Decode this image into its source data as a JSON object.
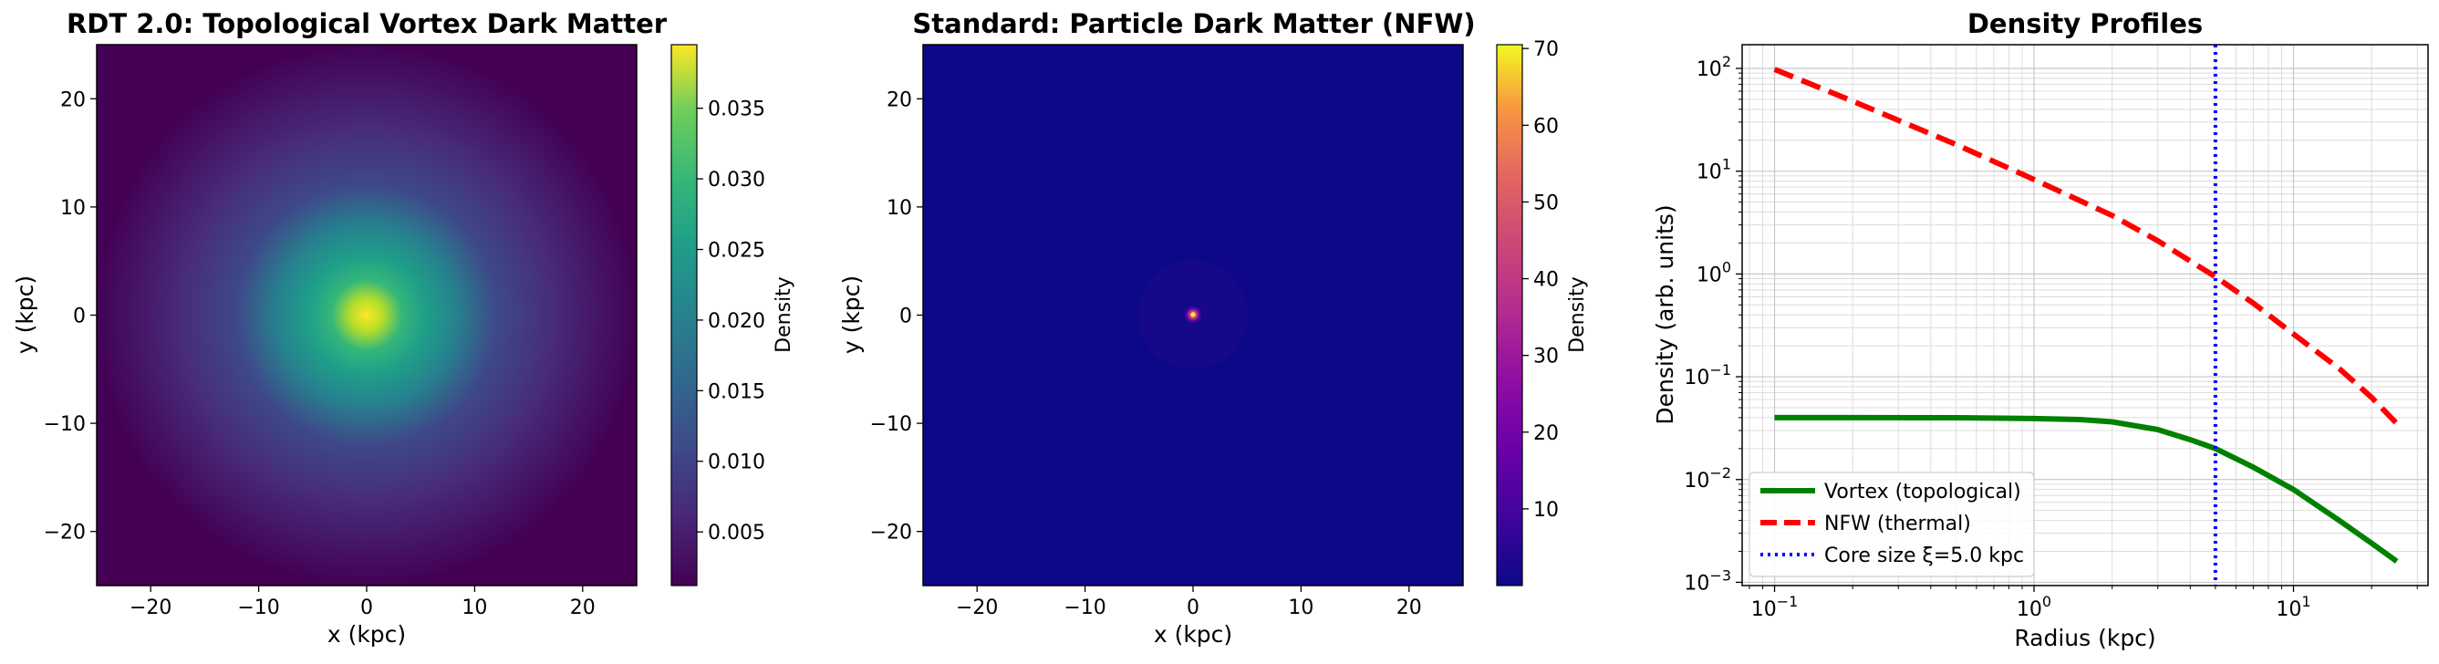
{
  "chart_data": [
    {
      "type": "heatmap",
      "title": "RDT 2.0: Topological Vortex Dark Matter",
      "xlabel": "x (kpc)",
      "ylabel": "y (kpc)",
      "xlim": [
        -25,
        25
      ],
      "ylim": [
        -25,
        25
      ],
      "xticks": [
        "−20",
        "−10",
        "0",
        "10",
        "20"
      ],
      "yticks": [
        "20",
        "10",
        "0",
        "−10",
        "−20"
      ],
      "colormap": "viridis",
      "colorbar": {
        "label": "Density",
        "range": [
          0.0012,
          0.0395
        ],
        "ticks": [
          "0.005",
          "0.010",
          "0.015",
          "0.020",
          "0.025",
          "0.030",
          "0.035"
        ],
        "tick_values": [
          0.005,
          0.01,
          0.015,
          0.02,
          0.025,
          0.03,
          0.035
        ]
      },
      "profile": "cored vortex, peak density ~0.04 at center, core size 5.0 kpc"
    },
    {
      "type": "heatmap",
      "title": "Standard: Particle Dark Matter (NFW)",
      "xlabel": "x (kpc)",
      "ylabel": "y (kpc)",
      "xlim": [
        -25,
        25
      ],
      "ylim": [
        -25,
        25
      ],
      "xticks": [
        "−20",
        "−10",
        "0",
        "10",
        "20"
      ],
      "yticks": [
        "20",
        "10",
        "0",
        "−10",
        "−20"
      ],
      "colormap": "plasma",
      "colorbar": {
        "label": "Density",
        "range": [
          0,
          70.5
        ],
        "ticks": [
          "10",
          "20",
          "30",
          "40",
          "50",
          "60",
          "70"
        ],
        "tick_values": [
          10,
          20,
          30,
          40,
          50,
          60,
          70
        ]
      },
      "profile": "NFW cusp, peak ~70 at center"
    },
    {
      "type": "line",
      "title": "Density Profiles",
      "xlabel": "Radius (kpc)",
      "ylabel": "Density (arb. units)",
      "xscale": "log",
      "yscale": "log",
      "xlim": [
        0.075,
        33
      ],
      "ylim": [
        0.00093,
        170
      ],
      "grid": true,
      "legend_position": "lower-left",
      "xticks": [
        {
          "v": 0.1,
          "base": "10",
          "exp": "−1"
        },
        {
          "v": 1,
          "base": "10",
          "exp": "0"
        },
        {
          "v": 10,
          "base": "10",
          "exp": "1"
        }
      ],
      "yticks": [
        {
          "v": 0.001,
          "base": "10",
          "exp": "−3"
        },
        {
          "v": 0.01,
          "base": "10",
          "exp": "−2"
        },
        {
          "v": 0.1,
          "base": "10",
          "exp": "−1"
        },
        {
          "v": 1,
          "base": "10",
          "exp": "0"
        },
        {
          "v": 10,
          "base": "10",
          "exp": "1"
        },
        {
          "v": 100,
          "base": "10",
          "exp": "2"
        }
      ],
      "series": [
        {
          "name": "Vortex (topological)",
          "color": "#008000",
          "style": "solid",
          "x": [
            0.1,
            0.2,
            0.5,
            1,
            1.5,
            2,
            3,
            4,
            5,
            7,
            10,
            15,
            20,
            25
          ],
          "y": [
            0.04,
            0.04,
            0.0399,
            0.0392,
            0.0383,
            0.0364,
            0.0306,
            0.0244,
            0.02,
            0.0132,
            0.008,
            0.004,
            0.0024,
            0.0016
          ]
        },
        {
          "name": "NFW (thermal)",
          "color": "#ff0000",
          "style": "dashed",
          "x": [
            0.1,
            0.2,
            0.5,
            1,
            2,
            3,
            5,
            7,
            10,
            15,
            20,
            25
          ],
          "y": [
            98,
            48,
            18.2,
            8.3,
            3.7,
            2.1,
            0.94,
            0.52,
            0.26,
            0.12,
            0.063,
            0.035
          ]
        },
        {
          "name": "Core size ξ=5.0 kpc",
          "color": "#0000ff",
          "style": "dotted",
          "vline_x": 5.0
        }
      ]
    }
  ]
}
